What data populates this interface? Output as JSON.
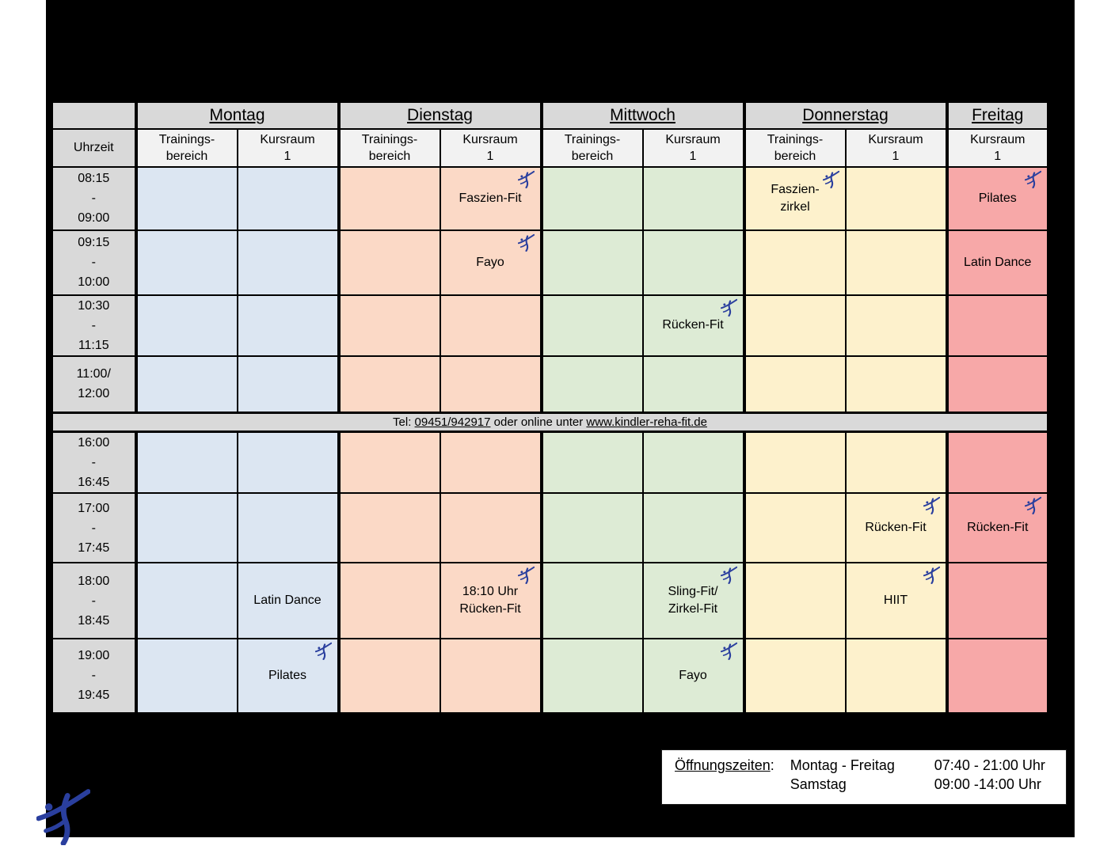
{
  "colors": {
    "header_gray": "#d9d9d9",
    "subheader_gray": "#f2f2f2",
    "time_gray": "#d9d9d9",
    "contact_gray": "#d9d9d9",
    "monday": "#dce6f2",
    "tuesday": "#fbd9c6",
    "wednesday": "#ddebd5",
    "thursday": "#fdf1cc",
    "friday": "#f7a8a8",
    "figure_blue": "#2a3f9e",
    "canvas_black": "#000000",
    "page_white": "#ffffff"
  },
  "table": {
    "time_column_header": "Uhrzeit",
    "day_groups": [
      {
        "label": "Montag",
        "color_key": "monday",
        "columns": [
          [
            "Trainings-",
            "bereich"
          ],
          [
            "Kursraum",
            "1"
          ]
        ]
      },
      {
        "label": "Dienstag",
        "color_key": "tuesday",
        "columns": [
          [
            "Trainings-",
            "bereich"
          ],
          [
            "Kursraum",
            "1"
          ]
        ]
      },
      {
        "label": "Mittwoch",
        "color_key": "wednesday",
        "columns": [
          [
            "Trainings-",
            "bereich"
          ],
          [
            "Kursraum",
            "1"
          ]
        ]
      },
      {
        "label": "Donnerstag",
        "color_key": "thursday",
        "columns": [
          [
            "Trainings-",
            "bereich"
          ],
          [
            "Kursraum",
            "1"
          ]
        ]
      },
      {
        "label": "Freitag",
        "color_key": "friday",
        "columns": [
          [
            "Kursraum",
            "1"
          ]
        ]
      }
    ],
    "morning_rows": [
      {
        "time": [
          "08:15",
          "-",
          "09:00"
        ],
        "cells": [
          null,
          null,
          null,
          {
            "lines": [
              "Faszien-Fit"
            ],
            "icon": true
          },
          null,
          null,
          {
            "lines": [
              "Faszien-",
              "zirkel"
            ],
            "icon": true
          },
          null,
          {
            "lines": [
              "Pilates"
            ],
            "icon": true
          }
        ]
      },
      {
        "time": [
          "09:15",
          "-",
          "10:00"
        ],
        "cells": [
          null,
          null,
          null,
          {
            "lines": [
              "Fayo"
            ],
            "icon": true
          },
          null,
          null,
          null,
          null,
          {
            "lines": [
              "Latin Dance"
            ],
            "icon": false
          }
        ]
      },
      {
        "time": [
          "10:30",
          "-",
          "11:15"
        ],
        "cells": [
          null,
          null,
          null,
          null,
          null,
          {
            "lines": [
              "Rücken-Fit"
            ],
            "icon": true
          },
          null,
          null,
          null
        ]
      },
      {
        "time": [
          "11:00/",
          "12:00"
        ],
        "cells": [
          null,
          null,
          null,
          null,
          null,
          null,
          null,
          null,
          null
        ]
      }
    ],
    "contact": {
      "prefix": "Tel: ",
      "phone": "09451/942917",
      "middle": " oder online unter ",
      "url": "www.kindler-reha-fit.de"
    },
    "evening_rows": [
      {
        "time": [
          "16:00",
          "-",
          "16:45"
        ],
        "cells": [
          null,
          null,
          null,
          null,
          null,
          null,
          null,
          null,
          null
        ]
      },
      {
        "time": [
          "17:00",
          "-",
          "17:45"
        ],
        "cells": [
          null,
          null,
          null,
          null,
          null,
          null,
          null,
          {
            "lines": [
              "Rücken-Fit"
            ],
            "icon": true
          },
          {
            "lines": [
              "Rücken-Fit"
            ],
            "icon": true
          }
        ]
      },
      {
        "time": [
          "18:00",
          "-",
          "18:45"
        ],
        "cells": [
          null,
          {
            "lines": [
              "Latin Dance"
            ],
            "icon": false
          },
          null,
          {
            "lines": [
              "18:10 Uhr",
              "Rücken-Fit"
            ],
            "icon": true
          },
          null,
          {
            "lines": [
              "Sling-Fit/",
              "Zirkel-Fit"
            ],
            "icon": true
          },
          null,
          {
            "lines": [
              "HIIT"
            ],
            "icon": true
          },
          null
        ]
      },
      {
        "time": [
          "19:00",
          "-",
          "19:45"
        ],
        "cells": [
          null,
          {
            "lines": [
              "Pilates"
            ],
            "icon": true
          },
          null,
          null,
          null,
          {
            "lines": [
              "Fayo"
            ],
            "icon": true
          },
          null,
          null,
          null
        ]
      }
    ]
  },
  "opening_hours": {
    "label": "Öffnungszeiten",
    "colon": ":",
    "rows": [
      {
        "days": "Montag - Freitag",
        "hours": "07:40 - 21:00 Uhr"
      },
      {
        "days": "Samstag",
        "hours": "09:00 -14:00 Uhr"
      }
    ]
  }
}
